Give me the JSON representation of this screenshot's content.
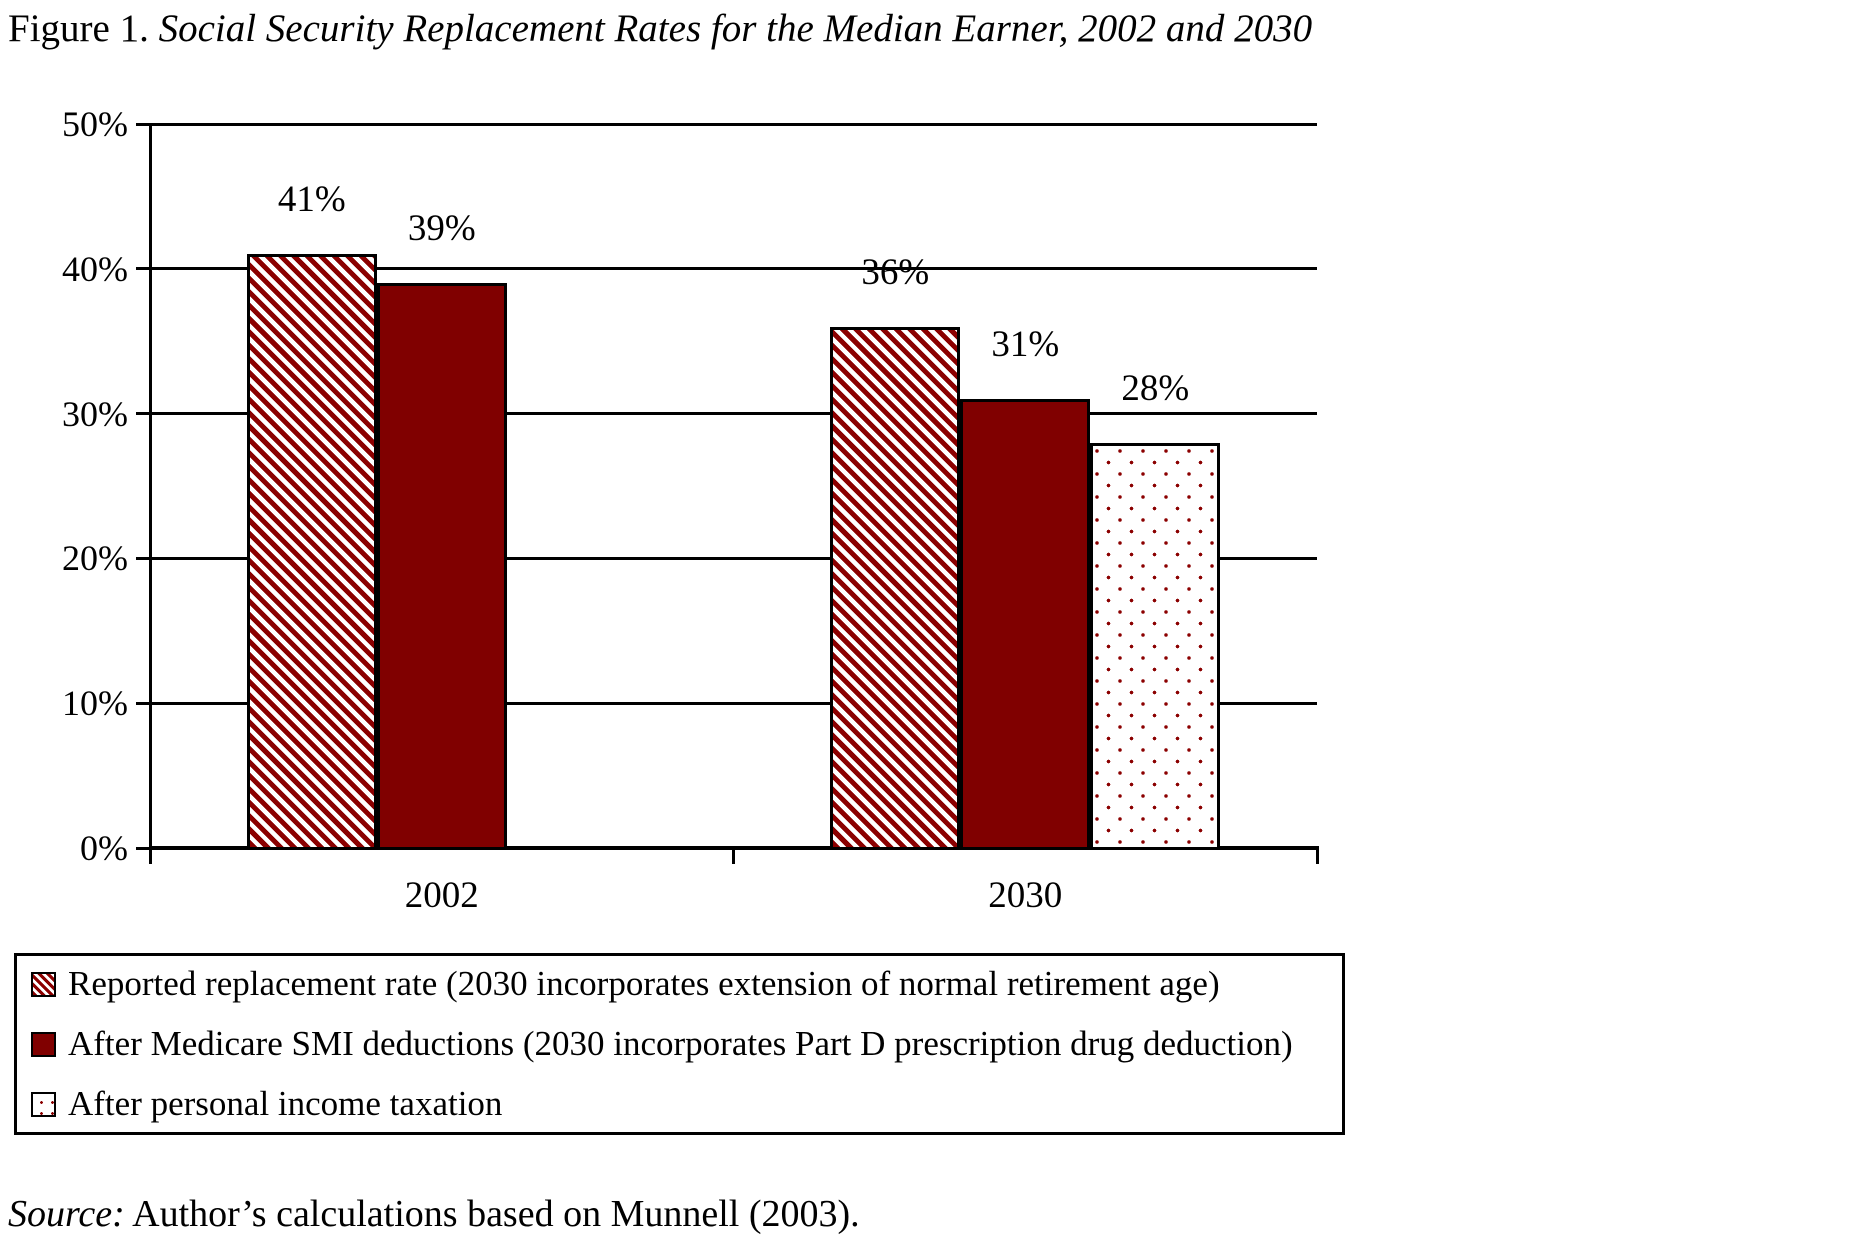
{
  "title": {
    "prefix": "Figure 1.",
    "text": " Social Security Replacement Rates for the Median Earner, 2002 and 2030"
  },
  "source": {
    "prefix": "Source:",
    "text": " Author’s calculations based on Munnell (2003)."
  },
  "colors": {
    "maroon": "#800000",
    "hatch_red": "#8b0000",
    "axis_black": "#000000",
    "background": "#ffffff"
  },
  "chart_data": {
    "type": "bar",
    "title": "Social Security Replacement Rates for the Median Earner, 2002 and 2030",
    "categories": [
      "2002",
      "2030"
    ],
    "series": [
      {
        "name": "Reported replacement rate (2030 incorporates extension of normal retirement age)",
        "pattern": "hatch",
        "values": [
          41,
          36
        ],
        "labels": [
          "41%",
          "36%"
        ]
      },
      {
        "name": "After Medicare SMI deductions (2030 incorporates Part D prescription drug deduction)",
        "pattern": "solid",
        "values": [
          39,
          31
        ],
        "labels": [
          "39%",
          "31%"
        ]
      },
      {
        "name": "After personal income taxation",
        "pattern": "dots",
        "values": [
          null,
          28
        ],
        "labels": [
          null,
          "28%"
        ]
      }
    ],
    "ylim": [
      0,
      50
    ],
    "ytick_step": 10,
    "ytick_labels": [
      "0%",
      "10%",
      "20%",
      "30%",
      "40%",
      "50%"
    ],
    "grid": true,
    "legend_position": "bottom-box"
  }
}
